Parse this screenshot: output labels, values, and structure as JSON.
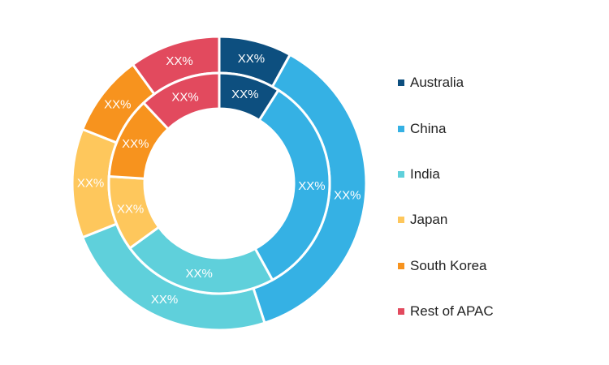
{
  "chart_data": {
    "type": "pie",
    "style": "nested-donut",
    "categories": [
      "Australia",
      "China",
      "India",
      "Japan",
      "South Korea",
      "Rest of APAC"
    ],
    "colors": [
      "#0d4f7f",
      "#35b1e4",
      "#5fd0db",
      "#fec75c",
      "#f7931e",
      "#e24a5e"
    ],
    "series": [
      {
        "ring": "outer",
        "values": [
          8,
          37,
          24,
          12,
          9,
          10
        ],
        "labels": [
          "XX%",
          "XX%",
          "XX%",
          "XX%",
          "XX%",
          "XX%"
        ]
      },
      {
        "ring": "inner",
        "values": [
          9,
          33,
          23,
          11,
          12,
          12
        ],
        "labels": [
          "XX%",
          "XX%",
          "XX%",
          "XX%",
          "XX%",
          "XX%"
        ]
      }
    ],
    "legend_position": "right"
  },
  "legend": {
    "items": [
      {
        "label": "Australia",
        "color": "#0d4f7f"
      },
      {
        "label": "China",
        "color": "#35b1e4"
      },
      {
        "label": "India",
        "color": "#5fd0db"
      },
      {
        "label": "Japan",
        "color": "#fec75c"
      },
      {
        "label": "South Korea",
        "color": "#f7931e"
      },
      {
        "label": "Rest of APAC",
        "color": "#e24a5e"
      }
    ]
  }
}
